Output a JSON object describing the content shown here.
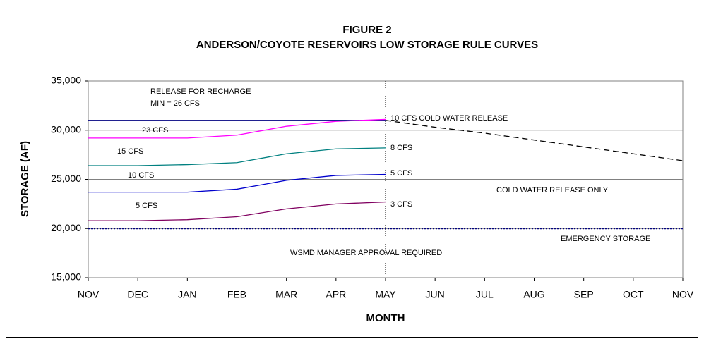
{
  "chart_data": {
    "type": "line",
    "title": "FIGURE 2",
    "subtitle": "ANDERSON/COYOTE RESERVOIRS LOW STORAGE RULE CURVES",
    "xlabel": "MONTH",
    "ylabel": "STORAGE (AF)",
    "categories": [
      "NOV",
      "DEC",
      "JAN",
      "FEB",
      "MAR",
      "APR",
      "MAY",
      "JUN",
      "JUL",
      "AUG",
      "SEP",
      "OCT",
      "NOV"
    ],
    "ylim": [
      15000,
      35000
    ],
    "yticks": [
      {
        "value": 15000,
        "label": "15,000"
      },
      {
        "value": 20000,
        "label": "20,000"
      },
      {
        "value": 25000,
        "label": "25,000"
      },
      {
        "value": 30000,
        "label": "30,000"
      },
      {
        "value": 35000,
        "label": "35,000"
      }
    ],
    "grid": true,
    "vline": "MAY",
    "series": [
      {
        "color": "#000080",
        "dash": "solid",
        "values": [
          31000,
          31000,
          31000,
          31000,
          31000,
          31000,
          31000,
          null,
          null,
          null,
          null,
          null,
          null
        ]
      },
      {
        "color": "#000000",
        "dash": "dashed",
        "values": [
          null,
          null,
          null,
          null,
          null,
          null,
          31000,
          30300,
          29700,
          29000,
          28300,
          27600,
          26900
        ]
      },
      {
        "color": "#ff00ff",
        "dash": "solid",
        "values": [
          29200,
          29200,
          29200,
          29500,
          30400,
          30900,
          31100,
          null,
          null,
          null,
          null,
          null,
          null
        ]
      },
      {
        "color": "#008080",
        "dash": "solid",
        "values": [
          26400,
          26400,
          26500,
          26700,
          27600,
          28100,
          28200,
          null,
          null,
          null,
          null,
          null,
          null
        ]
      },
      {
        "color": "#0000cc",
        "dash": "solid",
        "values": [
          23700,
          23700,
          23700,
          24000,
          24900,
          25400,
          25500,
          null,
          null,
          null,
          null,
          null,
          null
        ]
      },
      {
        "color": "#800060",
        "dash": "solid",
        "values": [
          20800,
          20800,
          20900,
          21200,
          22000,
          22500,
          22700,
          null,
          null,
          null,
          null,
          null,
          null
        ]
      },
      {
        "color": "#000080",
        "dash": "dotted",
        "values": [
          20000,
          20000,
          20000,
          20000,
          20000,
          20000,
          20000,
          20000,
          20000,
          20000,
          20000,
          20000,
          20000
        ]
      }
    ],
    "annotations": [
      "RELEASE FOR RECHARGE",
      "MIN = 26 CFS",
      "23 CFS",
      "15 CFS",
      "10 CFS",
      "5 CFS",
      "10 CFS COLD WATER RELEASE",
      "8 CFS",
      "5 CFS",
      "3 CFS",
      "COLD WATER RELEASE ONLY",
      "EMERGENCY STORAGE",
      "WSMD MANAGER APPROVAL REQUIRED"
    ]
  }
}
